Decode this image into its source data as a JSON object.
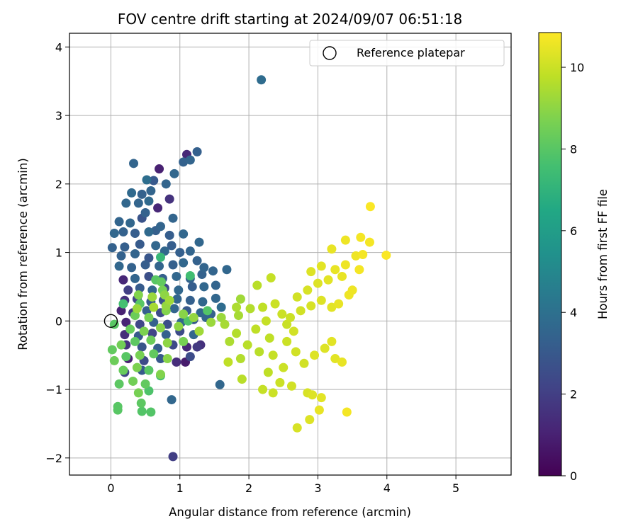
{
  "chart_data": {
    "type": "scatter",
    "title": "FOV centre drift starting at 2024/09/07 06:51:18",
    "xlabel": "Angular distance from reference (arcmin)",
    "ylabel": "Rotation from reference (arcmin)",
    "xlim": [
      -0.6,
      5.8
    ],
    "ylim": [
      -2.25,
      4.2
    ],
    "xticks": [
      0,
      1,
      2,
      3,
      4,
      5
    ],
    "yticks": [
      -2,
      -1,
      0,
      1,
      2,
      3,
      4
    ],
    "grid": true,
    "legend": {
      "position": "top-right",
      "entries": [
        "Reference platepar"
      ]
    },
    "colorbar": {
      "label": "Hours from first FF file",
      "colormap": "viridis",
      "range": [
        0,
        10.85
      ],
      "ticks": [
        0,
        2,
        4,
        6,
        8,
        10
      ]
    },
    "reference_point": {
      "x": 0,
      "y": 0
    },
    "series": [
      {
        "columns": [
          "x",
          "y",
          "hours"
        ],
        "points": [
          [
            0.9,
            -1.98,
            2.0
          ],
          [
            2.18,
            3.52,
            3.8
          ],
          [
            0.33,
            2.3,
            3.5
          ],
          [
            0.7,
            2.22,
            1.0
          ],
          [
            1.1,
            2.43,
            1.2
          ],
          [
            1.25,
            2.47,
            3.3
          ],
          [
            0.92,
            2.15,
            3.6
          ],
          [
            1.05,
            2.32,
            3.4
          ],
          [
            1.15,
            2.35,
            3.5
          ],
          [
            0.52,
            2.06,
            3.9
          ],
          [
            0.62,
            2.05,
            3.0
          ],
          [
            0.8,
            2.0,
            3.5
          ],
          [
            0.3,
            1.87,
            3.7
          ],
          [
            0.58,
            1.9,
            3.5
          ],
          [
            0.85,
            1.78,
            1.6
          ],
          [
            0.22,
            1.72,
            3.6
          ],
          [
            0.4,
            1.72,
            3.5
          ],
          [
            0.5,
            1.58,
            3.4
          ],
          [
            0.68,
            1.65,
            1.2
          ],
          [
            0.9,
            1.5,
            3.5
          ],
          [
            0.12,
            1.45,
            3.5
          ],
          [
            0.28,
            1.43,
            3.6
          ],
          [
            0.45,
            1.5,
            2.8
          ],
          [
            0.72,
            1.38,
            3.5
          ],
          [
            0.05,
            1.28,
            3.6
          ],
          [
            0.18,
            1.3,
            3.4
          ],
          [
            0.35,
            1.28,
            3.2
          ],
          [
            0.55,
            1.3,
            3.7
          ],
          [
            0.85,
            1.25,
            3.2
          ],
          [
            1.05,
            1.27,
            3.6
          ],
          [
            0.02,
            1.07,
            3.4
          ],
          [
            0.2,
            1.08,
            3.3
          ],
          [
            0.42,
            1.12,
            3.1
          ],
          [
            0.65,
            1.1,
            3.6
          ],
          [
            0.88,
            1.1,
            3.2
          ],
          [
            1.28,
            1.15,
            3.6
          ],
          [
            0.15,
            0.95,
            3.4
          ],
          [
            0.35,
            0.98,
            3.5
          ],
          [
            0.55,
            0.92,
            2.9
          ],
          [
            0.78,
            1.02,
            3.6
          ],
          [
            1.0,
            1.0,
            3.3
          ],
          [
            1.15,
            1.02,
            3.5
          ],
          [
            0.72,
            0.93,
            7.2
          ],
          [
            0.12,
            0.8,
            3.6
          ],
          [
            0.3,
            0.78,
            3.4
          ],
          [
            0.5,
            0.82,
            3.2
          ],
          [
            0.7,
            0.8,
            3.5
          ],
          [
            0.9,
            0.82,
            3.3
          ],
          [
            1.05,
            0.85,
            3.6
          ],
          [
            1.25,
            0.88,
            3.4
          ],
          [
            1.35,
            0.78,
            3.5
          ],
          [
            1.68,
            0.75,
            3.6
          ],
          [
            1.48,
            0.73,
            3.5
          ],
          [
            1.32,
            0.68,
            3.4
          ],
          [
            0.18,
            0.6,
            1.2
          ],
          [
            0.35,
            0.62,
            3.5
          ],
          [
            0.55,
            0.65,
            2.6
          ],
          [
            0.75,
            0.62,
            3.3
          ],
          [
            0.95,
            0.65,
            3.6
          ],
          [
            1.15,
            0.62,
            3.4
          ],
          [
            1.15,
            0.66,
            7.5
          ],
          [
            0.25,
            0.45,
            2.0
          ],
          [
            0.42,
            0.48,
            3.1
          ],
          [
            0.6,
            0.45,
            3.5
          ],
          [
            0.78,
            0.48,
            2.4
          ],
          [
            0.98,
            0.45,
            3.6
          ],
          [
            1.18,
            0.5,
            3.2
          ],
          [
            1.35,
            0.5,
            3.6
          ],
          [
            1.52,
            0.52,
            3.5
          ],
          [
            0.2,
            0.3,
            1.5
          ],
          [
            0.38,
            0.32,
            2.2
          ],
          [
            0.58,
            0.28,
            3.1
          ],
          [
            0.76,
            0.3,
            2.7
          ],
          [
            0.96,
            0.32,
            3.5
          ],
          [
            1.15,
            0.3,
            3.3
          ],
          [
            1.33,
            0.28,
            3.6
          ],
          [
            1.52,
            0.33,
            3.6
          ],
          [
            1.6,
            0.2,
            3.8
          ],
          [
            0.15,
            0.15,
            1.0
          ],
          [
            0.32,
            0.12,
            1.8
          ],
          [
            0.52,
            0.15,
            3.2
          ],
          [
            0.72,
            0.12,
            2.5
          ],
          [
            0.92,
            0.18,
            3.5
          ],
          [
            1.1,
            0.15,
            3.0
          ],
          [
            1.3,
            0.12,
            3.6
          ],
          [
            1.45,
            0.1,
            3.4
          ],
          [
            0.22,
            -0.02,
            1.1
          ],
          [
            0.42,
            -0.05,
            2.3
          ],
          [
            0.62,
            -0.02,
            3.4
          ],
          [
            0.82,
            -0.05,
            2.6
          ],
          [
            1.02,
            -0.02,
            3.6
          ],
          [
            1.2,
            0.02,
            3.1
          ],
          [
            1.38,
            0.05,
            3.5
          ],
          [
            0.2,
            -0.2,
            1.4
          ],
          [
            0.4,
            -0.22,
            3.0
          ],
          [
            0.6,
            -0.18,
            2.2
          ],
          [
            0.8,
            -0.2,
            3.3
          ],
          [
            1.0,
            -0.15,
            2.5
          ],
          [
            1.2,
            -0.2,
            3.6
          ],
          [
            1.3,
            -0.35,
            1.5
          ],
          [
            0.22,
            -0.35,
            1.6
          ],
          [
            0.45,
            -0.38,
            2.8
          ],
          [
            0.68,
            -0.4,
            3.2
          ],
          [
            0.9,
            -0.35,
            2.4
          ],
          [
            1.1,
            -0.38,
            1.2
          ],
          [
            1.25,
            -0.38,
            1.8
          ],
          [
            0.25,
            -0.55,
            1.0
          ],
          [
            0.48,
            -0.58,
            2.4
          ],
          [
            0.72,
            -0.55,
            3.0
          ],
          [
            0.95,
            -0.6,
            1.4
          ],
          [
            1.08,
            -0.6,
            0.8
          ],
          [
            1.15,
            -0.52,
            2.5
          ],
          [
            0.2,
            -0.75,
            2.2
          ],
          [
            0.45,
            -0.72,
            3.1
          ],
          [
            1.58,
            -0.93,
            3.6
          ],
          [
            0.88,
            -1.15,
            3.6
          ],
          [
            1.4,
            0.15,
            7.9
          ],
          [
            0.65,
            1.32,
            3.3
          ],
          [
            0.45,
            1.85,
            3.4
          ],
          [
            0.55,
            1.75,
            3.7
          ],
          [
            0.42,
            0.25,
            8.0
          ],
          [
            1.12,
            0.0,
            7.8
          ],
          [
            0.18,
            0.25,
            7.6
          ],
          [
            0.35,
            0.08,
            8.4
          ],
          [
            0.55,
            0.05,
            8.6
          ],
          [
            0.8,
            0.15,
            8.8
          ],
          [
            1.05,
            0.1,
            8.9
          ],
          [
            0.05,
            -0.05,
            8.0
          ],
          [
            0.28,
            -0.12,
            8.3
          ],
          [
            0.48,
            -0.15,
            8.7
          ],
          [
            0.72,
            -0.1,
            8.9
          ],
          [
            0.98,
            -0.08,
            9.0
          ],
          [
            0.02,
            -0.42,
            8.2
          ],
          [
            0.15,
            -0.35,
            8.5
          ],
          [
            0.35,
            -0.3,
            8.1
          ],
          [
            0.58,
            -0.28,
            8.4
          ],
          [
            0.82,
            -0.32,
            9.0
          ],
          [
            1.05,
            -0.3,
            8.6
          ],
          [
            0.05,
            -0.58,
            8.4
          ],
          [
            0.22,
            -0.52,
            8.0
          ],
          [
            0.42,
            -0.5,
            8.6
          ],
          [
            0.62,
            -0.48,
            8.2
          ],
          [
            0.82,
            -0.55,
            8.9
          ],
          [
            0.18,
            -0.72,
            8.3
          ],
          [
            0.38,
            -0.68,
            8.7
          ],
          [
            0.55,
            -0.72,
            8.0
          ],
          [
            0.32,
            -0.88,
            8.5
          ],
          [
            0.5,
            -0.92,
            8.2
          ],
          [
            0.72,
            -0.78,
            8.8
          ],
          [
            0.12,
            -0.92,
            8.1
          ],
          [
            0.55,
            -1.02,
            7.8
          ],
          [
            0.4,
            -1.05,
            8.6
          ],
          [
            0.72,
            -0.8,
            7.5
          ],
          [
            0.1,
            -1.25,
            8.0
          ],
          [
            0.1,
            -1.3,
            8.0
          ],
          [
            0.45,
            -1.32,
            7.9
          ],
          [
            0.58,
            -1.33,
            7.9
          ],
          [
            0.44,
            -1.2,
            8.1
          ],
          [
            0.8,
            0.22,
            9.1
          ],
          [
            0.78,
            0.38,
            9.0
          ],
          [
            0.75,
            0.45,
            8.6
          ],
          [
            0.6,
            0.35,
            9.2
          ],
          [
            0.62,
            0.2,
            9.4
          ],
          [
            0.85,
            0.3,
            9.3
          ],
          [
            0.65,
            0.6,
            8.0
          ],
          [
            0.73,
            0.57,
            8.2
          ],
          [
            0.4,
            0.38,
            8.8
          ],
          [
            0.38,
            0.18,
            9.2
          ],
          [
            1.2,
            0.05,
            9.1
          ],
          [
            1.28,
            -0.15,
            9.3
          ],
          [
            1.45,
            -0.02,
            9.2
          ],
          [
            1.65,
            -0.05,
            9.4
          ],
          [
            1.82,
            -0.18,
            9.6
          ],
          [
            1.98,
            -0.35,
            9.7
          ],
          [
            1.72,
            -0.3,
            9.5
          ],
          [
            1.88,
            -0.55,
            9.6
          ],
          [
            1.7,
            -0.6,
            9.8
          ],
          [
            1.9,
            -0.85,
            9.7
          ],
          [
            2.1,
            -0.12,
            9.8
          ],
          [
            1.85,
            0.08,
            9.4
          ],
          [
            1.6,
            0.05,
            9.2
          ],
          [
            1.82,
            0.2,
            9.5
          ],
          [
            1.88,
            0.32,
            9.3
          ],
          [
            2.02,
            0.18,
            9.6
          ],
          [
            2.2,
            0.2,
            9.8
          ],
          [
            2.12,
            0.52,
            9.7
          ],
          [
            2.32,
            0.63,
            9.9
          ],
          [
            2.38,
            0.25,
            10.0
          ],
          [
            2.25,
            0.0,
            9.9
          ],
          [
            2.3,
            -0.25,
            9.8
          ],
          [
            2.15,
            -0.45,
            9.7
          ],
          [
            2.35,
            -0.5,
            9.9
          ],
          [
            2.5,
            -0.68,
            10.0
          ],
          [
            2.28,
            -0.75,
            9.8
          ],
          [
            2.45,
            -0.9,
            10.0
          ],
          [
            2.2,
            -1.0,
            9.9
          ],
          [
            2.35,
            -1.05,
            10.0
          ],
          [
            2.62,
            -0.95,
            10.1
          ],
          [
            2.85,
            -1.05,
            10.2
          ],
          [
            2.92,
            -1.08,
            10.3
          ],
          [
            3.05,
            -1.12,
            10.4
          ],
          [
            3.02,
            -1.3,
            10.5
          ],
          [
            2.7,
            -1.56,
            10.2
          ],
          [
            2.88,
            -1.44,
            10.3
          ],
          [
            3.42,
            -1.33,
            10.7
          ],
          [
            2.55,
            -0.3,
            10.0
          ],
          [
            2.68,
            -0.45,
            10.1
          ],
          [
            2.8,
            -0.62,
            10.1
          ],
          [
            2.95,
            -0.5,
            10.3
          ],
          [
            3.1,
            -0.4,
            10.3
          ],
          [
            3.25,
            -0.55,
            10.4
          ],
          [
            3.35,
            -0.6,
            10.5
          ],
          [
            3.2,
            -0.3,
            10.4
          ],
          [
            2.6,
            0.05,
            10.0
          ],
          [
            2.75,
            0.15,
            10.1
          ],
          [
            2.9,
            0.22,
            10.2
          ],
          [
            3.05,
            0.3,
            10.3
          ],
          [
            3.2,
            0.2,
            10.4
          ],
          [
            2.7,
            0.35,
            10.1
          ],
          [
            2.85,
            0.45,
            10.2
          ],
          [
            3.0,
            0.55,
            10.3
          ],
          [
            3.15,
            0.6,
            10.4
          ],
          [
            2.9,
            0.72,
            10.3
          ],
          [
            3.05,
            0.8,
            10.4
          ],
          [
            3.25,
            0.75,
            10.5
          ],
          [
            3.35,
            0.65,
            10.5
          ],
          [
            3.4,
            0.82,
            10.6
          ],
          [
            3.2,
            1.05,
            10.5
          ],
          [
            3.4,
            1.18,
            10.6
          ],
          [
            3.55,
            0.95,
            10.6
          ],
          [
            3.6,
            0.75,
            10.7
          ],
          [
            3.5,
            0.45,
            10.6
          ],
          [
            3.45,
            0.38,
            10.6
          ],
          [
            3.3,
            0.25,
            10.5
          ],
          [
            3.62,
            1.22,
            10.7
          ],
          [
            3.75,
            1.15,
            10.7
          ],
          [
            3.65,
            0.97,
            10.7
          ],
          [
            3.76,
            1.67,
            10.8
          ],
          [
            3.99,
            0.96,
            10.8
          ],
          [
            2.65,
            -0.15,
            10.1
          ],
          [
            2.48,
            0.1,
            10.0
          ],
          [
            2.55,
            -0.05,
            9.95
          ]
        ]
      }
    ]
  }
}
